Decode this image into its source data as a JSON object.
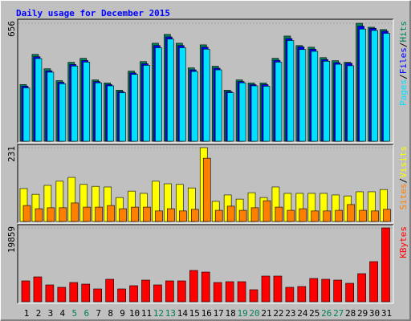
{
  "title": "Daily usage for December 2015",
  "legend_separator": "/",
  "categories": [
    "1",
    "2",
    "3",
    "4",
    "5",
    "6",
    "7",
    "8",
    "9",
    "10",
    "11",
    "12",
    "13",
    "14",
    "15",
    "16",
    "17",
    "18",
    "19",
    "20",
    "21",
    "22",
    "23",
    "24",
    "25",
    "26",
    "27",
    "28",
    "29",
    "30",
    "31"
  ],
  "category_colors": [
    "#000000",
    "#000000",
    "#000000",
    "#000000",
    "#00805c",
    "#00805c",
    "#000000",
    "#000000",
    "#000000",
    "#000000",
    "#000000",
    "#00805c",
    "#00805c",
    "#000000",
    "#000000",
    "#000000",
    "#000000",
    "#000000",
    "#00805c",
    "#00805c",
    "#000000",
    "#000000",
    "#000000",
    "#000000",
    "#000000",
    "#00805c",
    "#00805c",
    "#000000",
    "#000000",
    "#000000",
    "#000000"
  ],
  "chart_data": [
    {
      "type": "bar",
      "ylim": [
        0,
        656
      ],
      "yticks": [
        656
      ],
      "series": [
        {
          "name": "Hits",
          "color": "#00805c",
          "values": [
            315,
            483,
            403,
            337,
            439,
            461,
            341,
            324,
            284,
            390,
            443,
            545,
            594,
            545,
            408,
            536,
            417,
            284,
            341,
            324,
            324,
            461,
            585,
            532,
            523,
            465,
            448,
            439,
            656,
            634,
            621
          ]
        },
        {
          "name": "Files",
          "color": "#0000ff",
          "values": [
            306,
            470,
            392,
            328,
            427,
            449,
            332,
            315,
            276,
            380,
            431,
            532,
            580,
            532,
            397,
            523,
            406,
            276,
            332,
            315,
            315,
            450,
            571,
            525,
            512,
            454,
            437,
            434,
            640,
            628,
            612
          ]
        },
        {
          "name": "Pages",
          "color": "#00e0ff",
          "values": [
            297,
            460,
            384,
            320,
            418,
            440,
            325,
            308,
            270,
            372,
            422,
            520,
            568,
            520,
            388,
            512,
            397,
            270,
            325,
            308,
            306,
            440,
            560,
            510,
            500,
            445,
            428,
            420,
            624,
            616,
            600
          ]
        }
      ]
    },
    {
      "type": "bar",
      "ylim": [
        0,
        231
      ],
      "yticks": [
        231
      ],
      "series": [
        {
          "name": "Visits",
          "color": "#ffff00",
          "values": [
            103,
            85,
            113,
            126,
            138,
            116,
            110,
            108,
            75,
            95,
            88,
            126,
            118,
            116,
            105,
            231,
            63,
            83,
            70,
            90,
            75,
            108,
            88,
            88,
            88,
            88,
            83,
            80,
            93,
            93,
            100
          ]
        },
        {
          "name": "Sites",
          "color": "#ff8000",
          "values": [
            50,
            40,
            43,
            43,
            58,
            45,
            45,
            50,
            40,
            45,
            45,
            33,
            40,
            33,
            38,
            198,
            35,
            48,
            35,
            43,
            65,
            45,
            35,
            40,
            33,
            33,
            35,
            53,
            35,
            33,
            38
          ]
        }
      ]
    },
    {
      "type": "bar",
      "ylim": [
        0,
        19859
      ],
      "yticks": [
        19859
      ],
      "series": [
        {
          "name": "KBytes",
          "color": "#ff0000",
          "values": [
            5612,
            6692,
            4533,
            3885,
            5181,
            4749,
            3454,
            6044,
            3454,
            4317,
            5828,
            4533,
            5612,
            5612,
            8418,
            7987,
            5181,
            5396,
            5396,
            3238,
            6908,
            6908,
            3885,
            4101,
            6260,
            6044,
            5828,
            4965,
            7555,
            10793,
            19859
          ]
        }
      ]
    }
  ]
}
